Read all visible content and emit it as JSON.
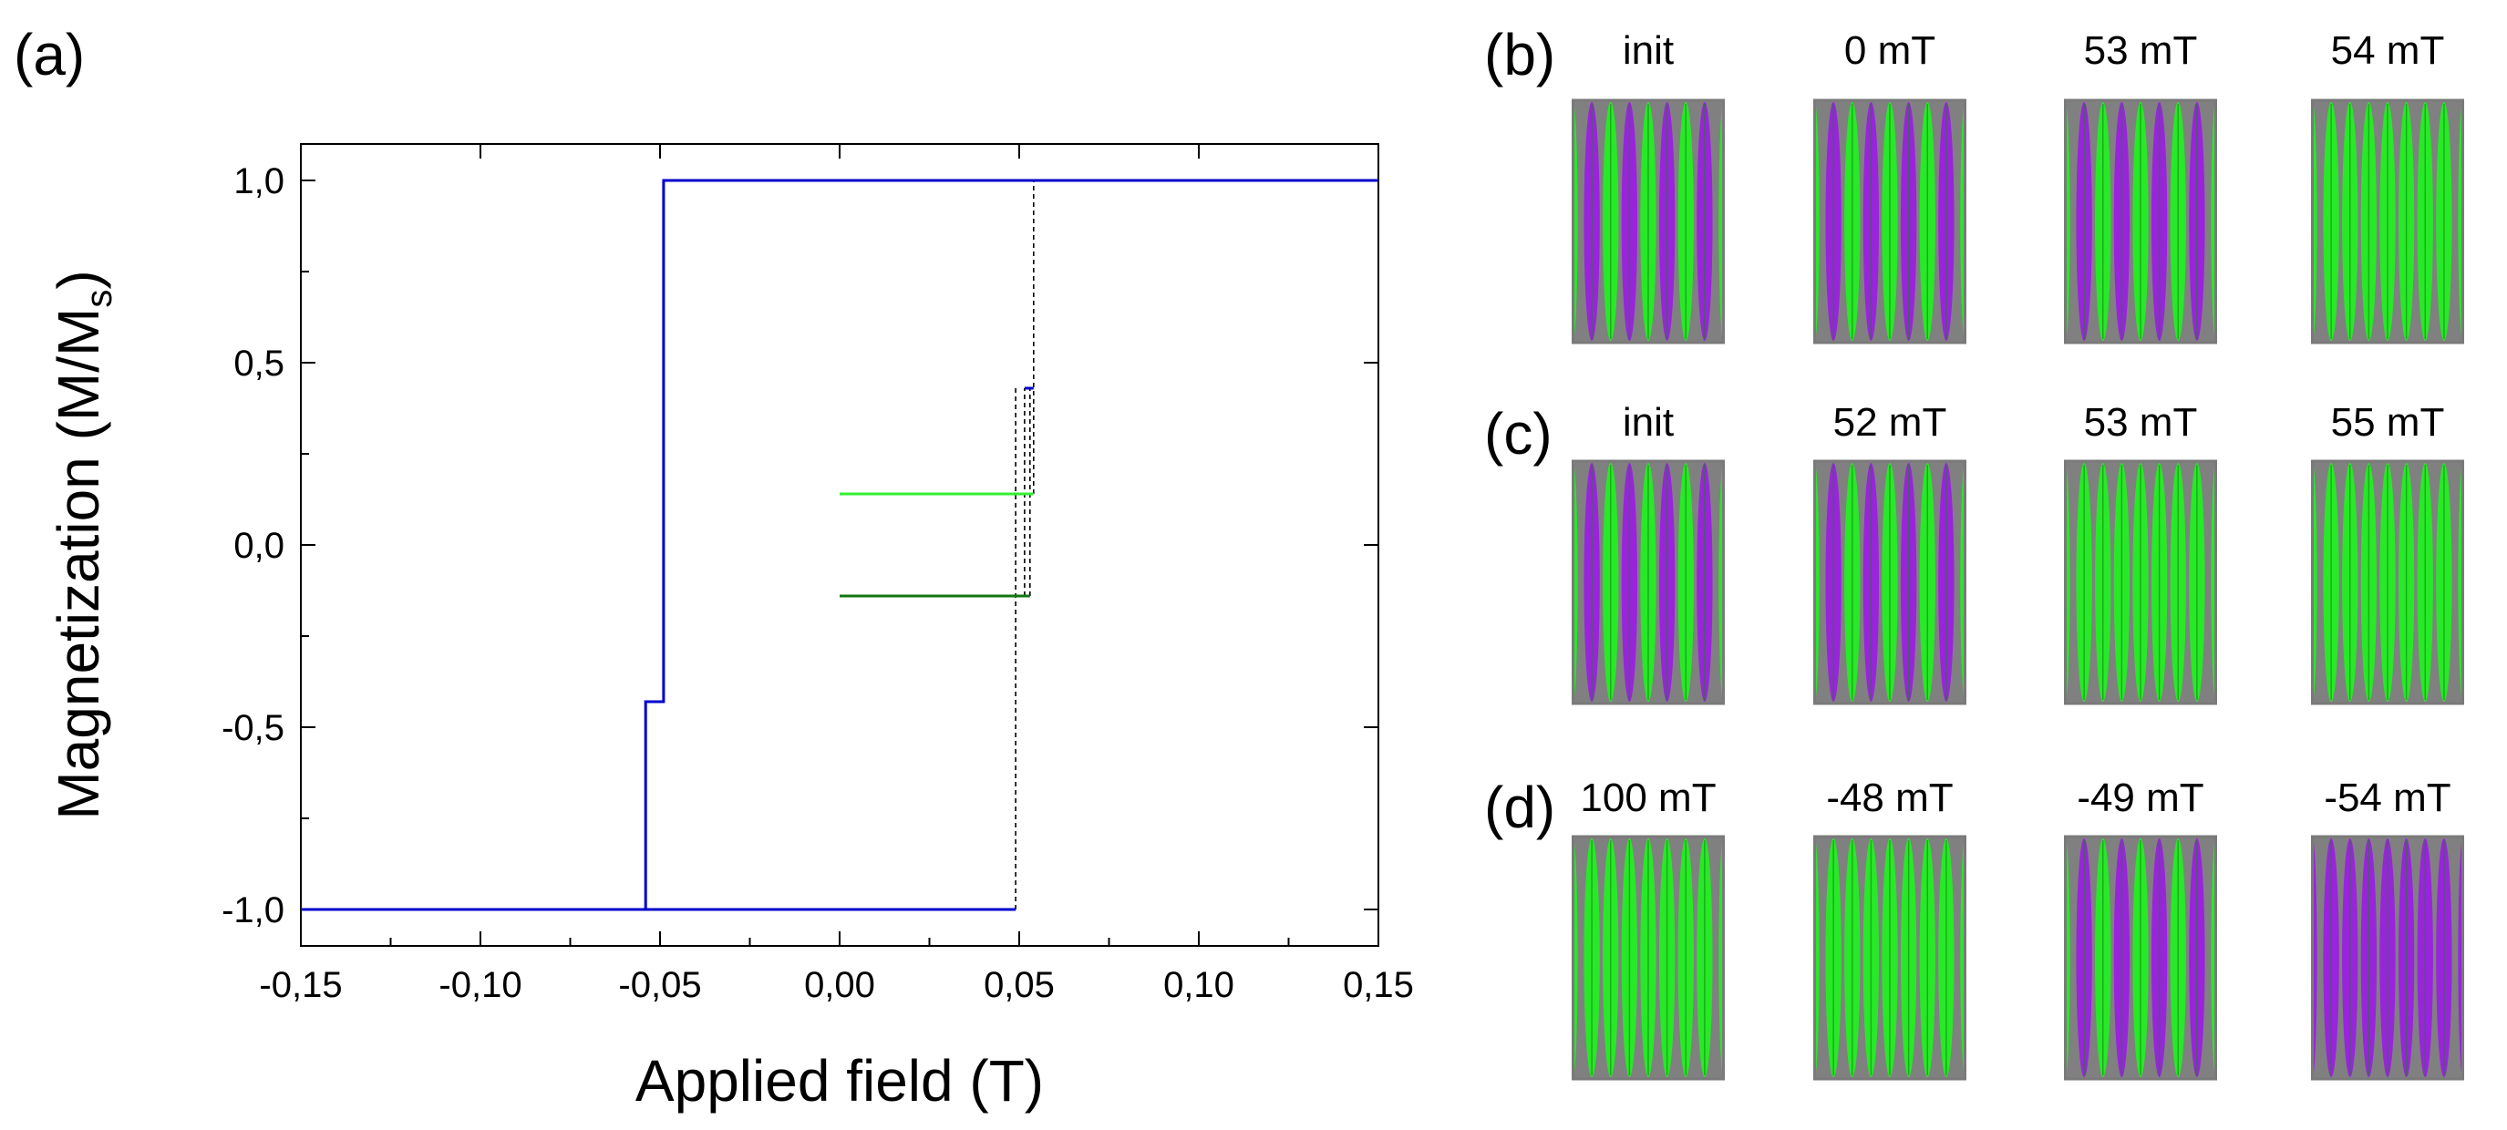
{
  "panels": {
    "a": "(a)",
    "b": "(b)",
    "c": "(c)",
    "d": "(d)"
  },
  "chart_data": {
    "type": "line",
    "title": "",
    "xlabel": "Applied field (T)",
    "ylabel": "Magnetization (M/M",
    "ylabel_sub": "s",
    "ylabel_close": ")",
    "xlim": [
      -0.15,
      0.15
    ],
    "ylim": [
      -1.1,
      1.1
    ],
    "x_ticks": [
      -0.15,
      -0.1,
      -0.05,
      0.0,
      0.05,
      0.1,
      0.15
    ],
    "x_tick_labels": [
      "-0,15",
      "-0,10",
      "-0,05",
      "0,00",
      "0,05",
      "0,10",
      "0,15"
    ],
    "y_ticks": [
      -1.0,
      -0.5,
      0.0,
      0.5,
      1.0
    ],
    "y_tick_labels": [
      "-1,0",
      "-0,5",
      "0,0",
      "0,5",
      "1,0"
    ],
    "series": [
      {
        "name": "major-loop",
        "color": "#0000cc",
        "style": "solid",
        "x": [
          -0.15,
          -0.054,
          -0.054,
          -0.049,
          -0.049,
          0.15
        ],
        "y": [
          -1.0,
          -1.0,
          -0.43,
          -0.43,
          1.0,
          1.0
        ]
      },
      {
        "name": "major-loop-return",
        "color": "#0000cc",
        "style": "solid",
        "x": [
          -0.15,
          0.049
        ],
        "y": [
          -1.0,
          -1.0
        ]
      },
      {
        "name": "upper-step",
        "color": "#0000cc",
        "style": "solid",
        "x": [
          0.0515,
          0.054
        ],
        "y": [
          0.43,
          0.43
        ]
      },
      {
        "name": "minor-loop-light",
        "color": "#33ee33",
        "style": "solid",
        "x": [
          0.0,
          0.054
        ],
        "y": [
          0.14,
          0.14
        ]
      },
      {
        "name": "minor-loop-dark",
        "color": "#117711",
        "style": "solid",
        "x": [
          0.0,
          0.053
        ],
        "y": [
          -0.14,
          -0.14
        ]
      },
      {
        "name": "switch-neg-1",
        "color": "#000000",
        "style": "dashed",
        "x": [
          -0.054,
          -0.054
        ],
        "y": [
          -1.0,
          -0.43
        ]
      },
      {
        "name": "switch-neg-2",
        "color": "#000000",
        "style": "dashed",
        "x": [
          -0.049,
          -0.049
        ],
        "y": [
          -0.43,
          1.0
        ]
      },
      {
        "name": "switch-pos-1",
        "color": "#000000",
        "style": "dashed",
        "x": [
          0.049,
          0.049
        ],
        "y": [
          -1.0,
          0.43
        ]
      },
      {
        "name": "switch-pos-2",
        "color": "#000000",
        "style": "dashed",
        "x": [
          0.0515,
          0.0515
        ],
        "y": [
          -0.14,
          0.43
        ]
      },
      {
        "name": "switch-pos-3",
        "color": "#000000",
        "style": "dashed",
        "x": [
          0.054,
          0.054
        ],
        "y": [
          0.14,
          1.0
        ]
      },
      {
        "name": "switch-pos-4",
        "color": "#000000",
        "style": "dashed",
        "x": [
          0.053,
          0.053
        ],
        "y": [
          -0.14,
          0.43
        ]
      }
    ]
  },
  "thumbnails": {
    "b": {
      "labels": [
        "init",
        "0 mT",
        "53 mT",
        "54 mT"
      ],
      "patterns": [
        "mixed",
        "mixed",
        "mixed",
        "green"
      ]
    },
    "c": {
      "labels": [
        "init",
        "52 mT",
        "53 mT",
        "55 mT"
      ],
      "patterns": [
        "mixed",
        "mixed",
        "green",
        "green"
      ]
    },
    "d": {
      "labels": [
        "100 mT",
        "-48 mT",
        "-49 mT",
        "-54 mT"
      ],
      "patterns": [
        "green",
        "green",
        "mixed",
        "purple"
      ]
    }
  },
  "colors": {
    "green": "#22ee22",
    "purple": "#9a1fe0",
    "gray": "#808080",
    "dark_green": "#118811"
  }
}
